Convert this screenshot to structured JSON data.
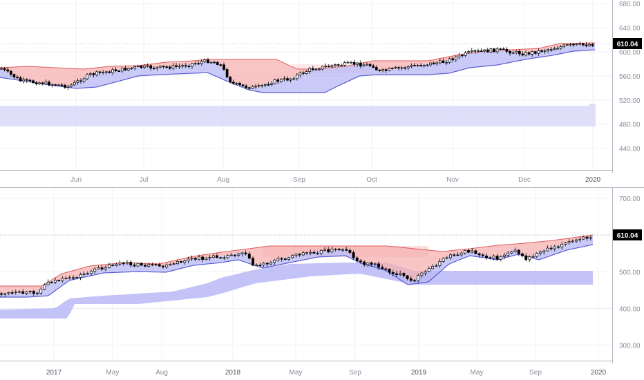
{
  "colors": {
    "background": "#ffffff",
    "grid": "#eef0f4",
    "axis": "#b2b5be",
    "kumo_bear": "#f5b0b0",
    "kumo_bear_line": "#e05a5a",
    "kumo_bull": "#b8b8f5",
    "kumo_bull_line": "#5a5ad2",
    "outer_cloud": "#dcdcfa",
    "candle_up": "#ffffff",
    "candle_down": "#000000",
    "price_tag_bg": "#000000",
    "price_tag_text": "#ffffff"
  },
  "chart_data": [
    {
      "type": "line",
      "description_type": "candlestick with ichimoku clouds",
      "x_labels": [
        "Jun",
        "Jul",
        "Aug",
        "Sep",
        "Oct",
        "Nov",
        "Dec",
        "2020"
      ],
      "y_ticks": [
        "680.00",
        "640.00",
        "600.00",
        "560.00",
        "520.00",
        "480.00",
        "440.00"
      ],
      "y_tick_values": [
        680,
        640,
        600,
        560,
        520,
        480,
        440
      ],
      "ylim": [
        404,
        686
      ],
      "last_price": "610.04",
      "series": [
        {
          "x": [
            "Jun",
            "Jul",
            "Aug",
            "Sep",
            "Oct",
            "Nov",
            "Dec",
            "2020"
          ],
          "values": [
            548,
            576,
            565,
            572,
            575,
            592,
            593,
            610
          ]
        }
      ]
    },
    {
      "type": "line",
      "description_type": "candlestick with ichimoku clouds",
      "x_labels": [
        "2017",
        "May",
        "Aug",
        "2018",
        "May",
        "Sep",
        "2019",
        "May",
        "Sep",
        "2020"
      ],
      "y_ticks": [
        "700.00",
        "600.00",
        "500.00",
        "400.00",
        "300.00"
      ],
      "y_tick_values": [
        700,
        600,
        500,
        400,
        300
      ],
      "ylim": [
        258,
        728
      ],
      "last_price": "610.04",
      "series": [
        {
          "x": [
            "2017",
            "May",
            "Aug",
            "2018",
            "May",
            "Sep",
            "2019",
            "May",
            "Sep",
            "2020"
          ],
          "values": [
            445,
            530,
            522,
            558,
            560,
            540,
            490,
            567,
            552,
            608
          ]
        }
      ]
    }
  ]
}
